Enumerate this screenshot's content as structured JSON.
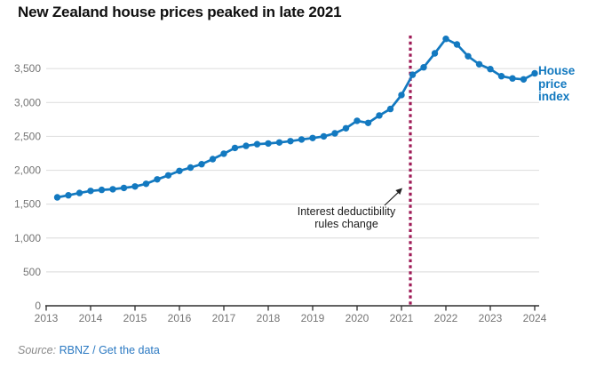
{
  "chart": {
    "title": "New Zealand house prices peaked in late 2021",
    "series_label": "House price index",
    "annotation": {
      "line1": "Interest deductibility",
      "line2": "rules change"
    }
  },
  "source": {
    "prefix": "Source:",
    "org": "RBNZ",
    "separator": "/",
    "data_link": "Get the data"
  },
  "colors": {
    "line": "#1379c0",
    "event_line": "#9e1a56",
    "grid": "#e1e1e1",
    "axis": "#2e2e2e",
    "tick_text": "#757575",
    "annotation_text": "#1a1a1a",
    "link": "#2b79c2"
  },
  "chart_data": {
    "type": "line",
    "title": "New Zealand house prices peaked in late 2021",
    "xlabel": "",
    "ylabel": "House price index",
    "x_axis": {
      "tick_labels": [
        "2013",
        "2014",
        "2015",
        "2016",
        "2017",
        "2018",
        "2019",
        "2020",
        "2021",
        "2022",
        "2023",
        "2024"
      ],
      "range": [
        2013,
        2024.1
      ]
    },
    "y_axis": {
      "tick_values": [
        0,
        500,
        1000,
        1500,
        2000,
        2500,
        3000,
        3500
      ],
      "tick_labels": [
        "0",
        "500",
        "1,000",
        "1,500",
        "2,000",
        "2,500",
        "3,000",
        "3,500"
      ],
      "range": [
        0,
        4000
      ],
      "gridlines": true
    },
    "legend_position": "right-of-line-end",
    "series": [
      {
        "name": "House price index",
        "marker": "circle",
        "quarters": [
          "2013 Q1",
          "2013 Q2",
          "2013 Q3",
          "2013 Q4",
          "2014 Q1",
          "2014 Q2",
          "2014 Q3",
          "2014 Q4",
          "2015 Q1",
          "2015 Q2",
          "2015 Q3",
          "2015 Q4",
          "2016 Q1",
          "2016 Q2",
          "2016 Q3",
          "2016 Q4",
          "2017 Q1",
          "2017 Q2",
          "2017 Q3",
          "2017 Q4",
          "2018 Q1",
          "2018 Q2",
          "2018 Q3",
          "2018 Q4",
          "2019 Q1",
          "2019 Q2",
          "2019 Q3",
          "2019 Q4",
          "2020 Q1",
          "2020 Q2",
          "2020 Q3",
          "2020 Q4",
          "2021 Q1",
          "2021 Q2",
          "2021 Q3",
          "2021 Q4",
          "2022 Q1",
          "2022 Q2",
          "2022 Q3",
          "2022 Q4",
          "2023 Q1",
          "2023 Q2",
          "2023 Q3",
          "2023 Q4"
        ],
        "values": [
          1600,
          1630,
          1665,
          1695,
          1710,
          1720,
          1740,
          1760,
          1800,
          1865,
          1925,
          1990,
          2040,
          2090,
          2165,
          2245,
          2330,
          2360,
          2385,
          2395,
          2410,
          2430,
          2455,
          2475,
          2500,
          2545,
          2620,
          2730,
          2698,
          2808,
          2904,
          3110,
          3410,
          3520,
          3725,
          3940,
          3857,
          3682,
          3564,
          3494,
          3389,
          3355,
          3341,
          3430
        ]
      }
    ],
    "event_line": {
      "x_year": 2021.2,
      "style": "dotted",
      "label": "Interest deductibility rules change"
    },
    "peak_value": 3940,
    "peak_quarter": "2021 Q4"
  }
}
